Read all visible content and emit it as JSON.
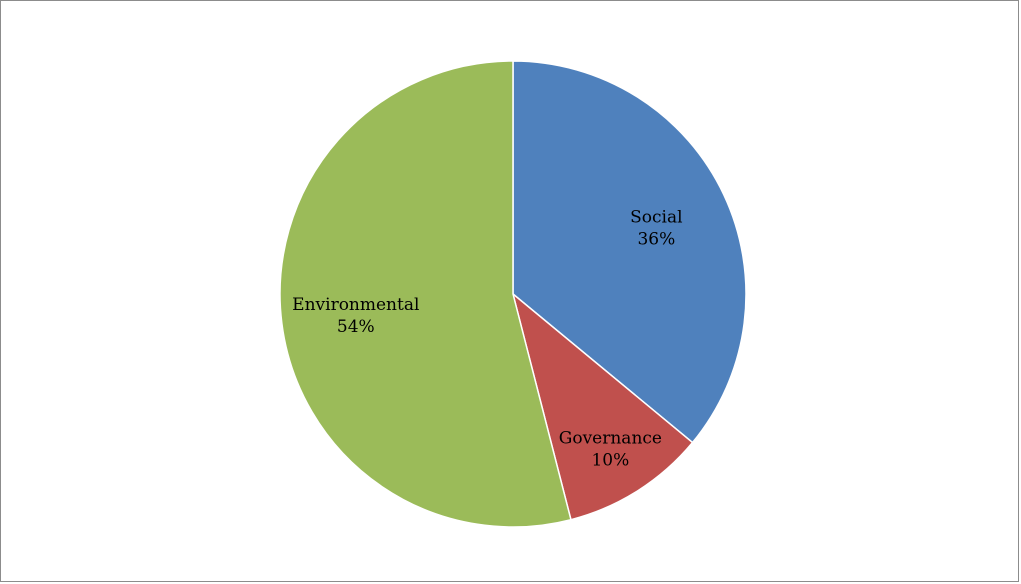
{
  "chart_data": {
    "type": "pie",
    "title": "",
    "start_angle_deg": 0,
    "direction": "clockwise",
    "slices": [
      {
        "label": "Social",
        "value": 36,
        "percent_label": "36%",
        "color": "#4F81BD"
      },
      {
        "label": "Governance",
        "value": 10,
        "percent_label": "10%",
        "color": "#C0504D"
      },
      {
        "label": "Environmental",
        "value": 54,
        "percent_label": "54%",
        "color": "#9BBB59"
      }
    ],
    "legend": "none",
    "data_labels": "category and percentage inside slices"
  }
}
